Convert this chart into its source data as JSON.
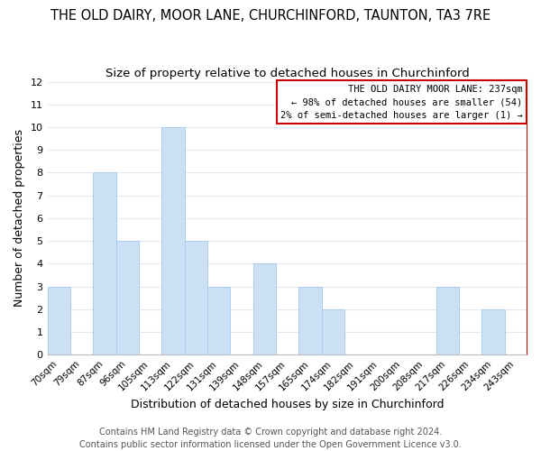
{
  "title": "THE OLD DAIRY, MOOR LANE, CHURCHINFORD, TAUNTON, TA3 7RE",
  "subtitle": "Size of property relative to detached houses in Churchinford",
  "xlabel": "Distribution of detached houses by size in Churchinford",
  "ylabel": "Number of detached properties",
  "footer_line1": "Contains HM Land Registry data © Crown copyright and database right 2024.",
  "footer_line2": "Contains public sector information licensed under the Open Government Licence v3.0.",
  "bar_labels": [
    "70sqm",
    "79sqm",
    "87sqm",
    "96sqm",
    "105sqm",
    "113sqm",
    "122sqm",
    "131sqm",
    "139sqm",
    "148sqm",
    "157sqm",
    "165sqm",
    "174sqm",
    "182sqm",
    "191sqm",
    "200sqm",
    "208sqm",
    "217sqm",
    "226sqm",
    "234sqm",
    "243sqm"
  ],
  "bar_heights": [
    3,
    0,
    8,
    5,
    0,
    10,
    5,
    3,
    0,
    4,
    0,
    3,
    2,
    0,
    0,
    0,
    0,
    3,
    0,
    2,
    0
  ],
  "bar_color": "#cce0f5",
  "bar_edge_color": "#aaccee",
  "ylim": [
    0,
    12
  ],
  "yticks": [
    0,
    1,
    2,
    3,
    4,
    5,
    6,
    7,
    8,
    9,
    10,
    11,
    12
  ],
  "reference_line_color": "#cc0000",
  "annotation_title": "THE OLD DAIRY MOOR LANE: 237sqm",
  "annotation_line1": "← 98% of detached houses are smaller (54)",
  "annotation_line2": "2% of semi-detached houses are larger (1) →",
  "annotation_box_edge_color": "#cc0000",
  "background_color": "#ffffff",
  "grid_color": "#e0eaf4",
  "title_fontsize": 10.5,
  "subtitle_fontsize": 9.5,
  "footer_fontsize": 7.0
}
